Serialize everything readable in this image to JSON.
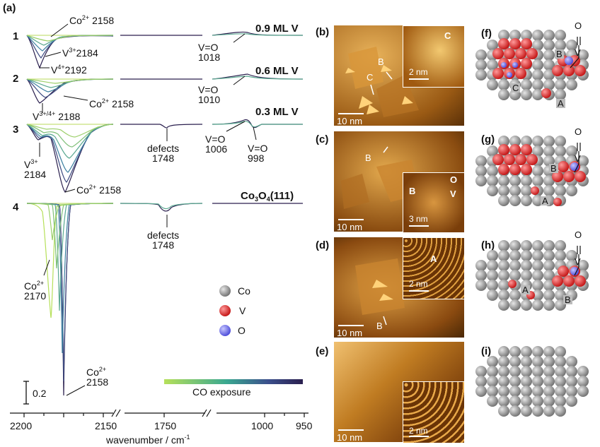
{
  "panel_a": {
    "label": "(a)",
    "rows": [
      "1",
      "2",
      "3",
      "4"
    ],
    "coverage": [
      "0.9 ML V",
      "0.6 ML V",
      "0.3 ML V"
    ],
    "substrate": {
      "base": "Co",
      "s1": "3",
      "mid": "O",
      "s2": "4",
      "end": "(111)"
    },
    "annotations": {
      "co2_2158_r1": {
        "ion": "Co",
        "charge": "2+",
        "wn": "2158"
      },
      "v3_2184_r1": {
        "ion": "V",
        "charge": "3+",
        "wn": "2184"
      },
      "v4_2192": {
        "ion": "V",
        "charge": "4+",
        "wn": "2192"
      },
      "vo_1018": {
        "bond": "V=O",
        "wn": "1018"
      },
      "vo_1010": {
        "bond": "V=O",
        "wn": "1010"
      },
      "co2_2158_r2": {
        "ion": "Co",
        "charge": "2+",
        "wn": "2158"
      },
      "v34_2188": {
        "ion": "V",
        "charge": "3+/4+",
        "wn": "2188"
      },
      "defects_r3": {
        "text": "defects",
        "wn": "1748"
      },
      "vo_1006": {
        "bond": "V=O",
        "wn": "1006"
      },
      "vo_998": {
        "bond": "V=O",
        "wn": "998"
      },
      "v3_2184_r3": {
        "ion": "V",
        "charge": "3+",
        "wn": "2184"
      },
      "co2_2158_r3": {
        "ion": "Co",
        "charge": "2+",
        "wn": "2158"
      },
      "defects_r4": {
        "text": "defects",
        "wn": "1748"
      },
      "co2_2170": {
        "ion": "Co",
        "charge": "2+",
        "wn": "2170"
      },
      "co2_2158_r4": {
        "ion": "Co",
        "charge": "2+",
        "wn": "2158"
      }
    },
    "scale": "0.2",
    "legend": [
      {
        "label": "Co",
        "color": "#8a8a8a"
      },
      {
        "label": "V",
        "color": "#e02020"
      },
      {
        "label": "O",
        "color": "#6a6af0"
      }
    ],
    "gradient_label": "CO exposure",
    "gradient_colors": [
      "#b6e05a",
      "#2a1f4e"
    ],
    "x_ticks": [
      "2200",
      "2150",
      "1750",
      "1000",
      "950"
    ],
    "x_label": {
      "base": "wavenumber / cm",
      "exp": "-1"
    }
  },
  "stm": [
    {
      "label": "(b)",
      "scale": "10 nm",
      "inset_scale": "2 nm",
      "marks": [
        "B",
        "C"
      ],
      "inset_mark": "C"
    },
    {
      "label": "(c)",
      "scale": "10 nm",
      "inset_scale": "3 nm",
      "marks": [
        "B"
      ],
      "inset_marks": [
        "B",
        "O",
        "V"
      ]
    },
    {
      "label": "(d)",
      "scale": "10 nm",
      "inset_scale": "2 nm",
      "marks": [
        "B"
      ],
      "inset_mark": "A"
    },
    {
      "label": "(e)",
      "scale": "10 nm",
      "inset_scale": "2 nm"
    }
  ],
  "models": [
    {
      "label": "(f)",
      "marks": [
        "B",
        "C",
        "A"
      ],
      "vo": [
        "O",
        "V"
      ]
    },
    {
      "label": "(g)",
      "marks": [
        "B",
        "A"
      ],
      "vo": [
        "O",
        "V"
      ]
    },
    {
      "label": "(h)",
      "marks": [
        "A",
        "B"
      ],
      "vo": [
        "O",
        "V"
      ]
    },
    {
      "label": "(i)"
    }
  ]
}
